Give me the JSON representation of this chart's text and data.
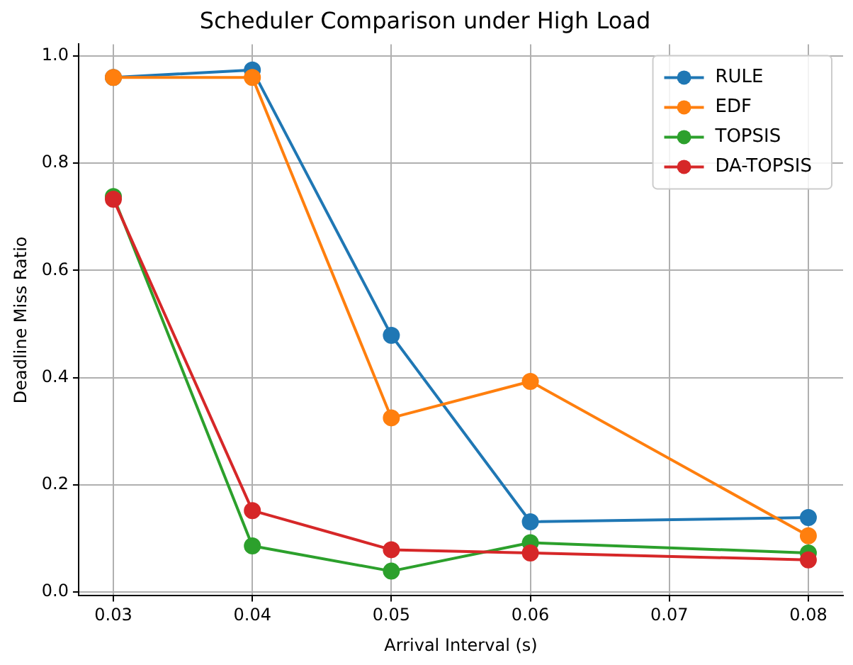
{
  "chart_data": {
    "type": "line",
    "title": "Scheduler Comparison under High Load",
    "xlabel": "Arrival Interval (s)",
    "ylabel": "Deadline Miss Ratio",
    "x": [
      0.03,
      0.04,
      0.05,
      0.06,
      0.08
    ],
    "series": [
      {
        "name": "RULE",
        "color": "#1f77b4",
        "values": [
          0.96,
          0.974,
          0.479,
          0.131,
          0.139
        ]
      },
      {
        "name": "EDF",
        "color": "#ff7f0e",
        "values": [
          0.96,
          0.96,
          0.325,
          0.393,
          0.105
        ]
      },
      {
        "name": "TOPSIS",
        "color": "#2ca02c",
        "values": [
          0.738,
          0.086,
          0.039,
          0.092,
          0.073
        ]
      },
      {
        "name": "DA-TOPSIS",
        "color": "#d62728",
        "values": [
          0.733,
          0.152,
          0.079,
          0.073,
          0.06
        ]
      }
    ],
    "xlim": [
      0.0275,
      0.0825
    ],
    "xticks": [
      {
        "value": 0.03,
        "label": "0.03"
      },
      {
        "value": 0.04,
        "label": "0.04"
      },
      {
        "value": 0.05,
        "label": "0.05"
      },
      {
        "value": 0.06,
        "label": "0.06"
      },
      {
        "value": 0.07,
        "label": "0.07"
      },
      {
        "value": 0.08,
        "label": "0.08"
      }
    ],
    "ylim": [
      -0.007,
      1.022
    ],
    "yticks": [
      {
        "value": 0,
        "label": "0.0"
      },
      {
        "value": 0.2,
        "label": "0.2"
      },
      {
        "value": 0.4,
        "label": "0.4"
      },
      {
        "value": 0.6,
        "label": "0.6"
      },
      {
        "value": 0.8,
        "label": "0.8"
      },
      {
        "value": 1,
        "label": "1.0"
      }
    ],
    "grid": true,
    "legend": "top right",
    "marker": "circle",
    "line_style": "solid"
  }
}
